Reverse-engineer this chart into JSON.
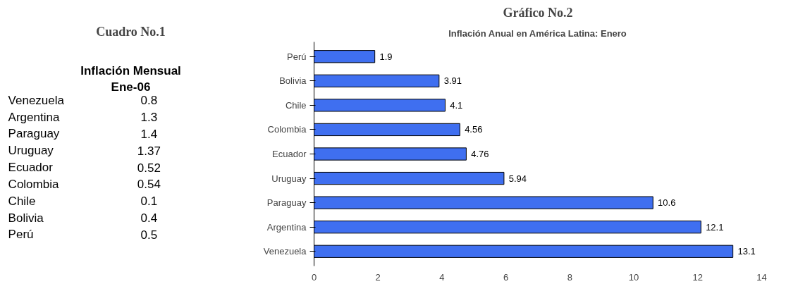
{
  "chart_data": [
    {
      "type": "other",
      "title": "Cuadro No.1",
      "subtitle": "Inflación Mensual\nEne-06",
      "annotations": [
        "Venezuela",
        "0.8",
        "Argentina",
        "1.3",
        "Paraguay",
        "1.4",
        "Uruguay",
        "1.37",
        "Ecuador",
        "0.52",
        "Colombia",
        "0.54",
        "Chile",
        "0.1",
        "Bolivia",
        "0.4",
        "Perú",
        "0.5"
      ]
    },
    {
      "type": "bar",
      "orientation": "horizontal",
      "title": "Gráfico No.2",
      "subtitle": "Inflación Anual en América Latina: Enero",
      "categories": [
        "Perú",
        "Bolivia",
        "Chile",
        "Colombia",
        "Ecuador",
        "Uruguay",
        "Paraguay",
        "Argentina",
        "Venezuela"
      ],
      "values": [
        1.9,
        3.91,
        4.1,
        4.56,
        4.76,
        5.94,
        10.6,
        12.1,
        13.1
      ],
      "color": "#3f6ff0",
      "xlim": [
        0,
        14
      ],
      "xticks": [
        0,
        2,
        4,
        6,
        8,
        10,
        12,
        14
      ],
      "data_labels": true,
      "grid": false
    }
  ]
}
